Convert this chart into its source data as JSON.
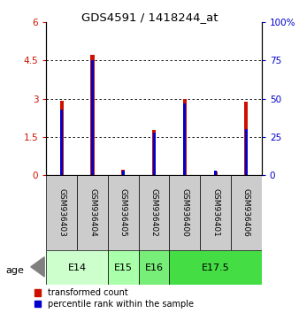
{
  "title": "GDS4591 / 1418244_at",
  "samples": [
    "GSM936403",
    "GSM936404",
    "GSM936405",
    "GSM936402",
    "GSM936400",
    "GSM936401",
    "GSM936406"
  ],
  "transformed_count": [
    2.93,
    4.72,
    0.22,
    1.78,
    2.98,
    0.15,
    2.88
  ],
  "percentile_rank_pct": [
    43,
    75,
    3,
    28,
    47,
    3,
    30
  ],
  "ylim_left": [
    0,
    6
  ],
  "ylim_right": [
    0,
    100
  ],
  "yticks_left": [
    0,
    1.5,
    3.0,
    4.5,
    6.0
  ],
  "ytick_labels_left": [
    "0",
    "1.5",
    "3",
    "4.5",
    "6"
  ],
  "yticks_right": [
    0,
    25,
    50,
    75,
    100
  ],
  "ytick_labels_right": [
    "0",
    "25",
    "50",
    "75",
    "100%"
  ],
  "age_groups": [
    {
      "label": "E14",
      "start": 0,
      "end": 2,
      "color": "#ccffcc"
    },
    {
      "label": "E15",
      "start": 2,
      "end": 3,
      "color": "#aaffaa"
    },
    {
      "label": "E16",
      "start": 3,
      "end": 4,
      "color": "#77ee77"
    },
    {
      "label": "E17.5",
      "start": 4,
      "end": 7,
      "color": "#44dd44"
    }
  ],
  "bar_color_red": "#cc1100",
  "bar_color_blue": "#0000cc",
  "red_bar_width": 0.12,
  "blue_bar_width": 0.12,
  "bg_color": "#ffffff",
  "sample_bg_color": "#cccccc",
  "left_tick_color": "#cc1100",
  "right_tick_color": "#0000cc",
  "legend_red_label": "transformed count",
  "legend_blue_label": "percentile rank within the sample",
  "age_label": "age"
}
